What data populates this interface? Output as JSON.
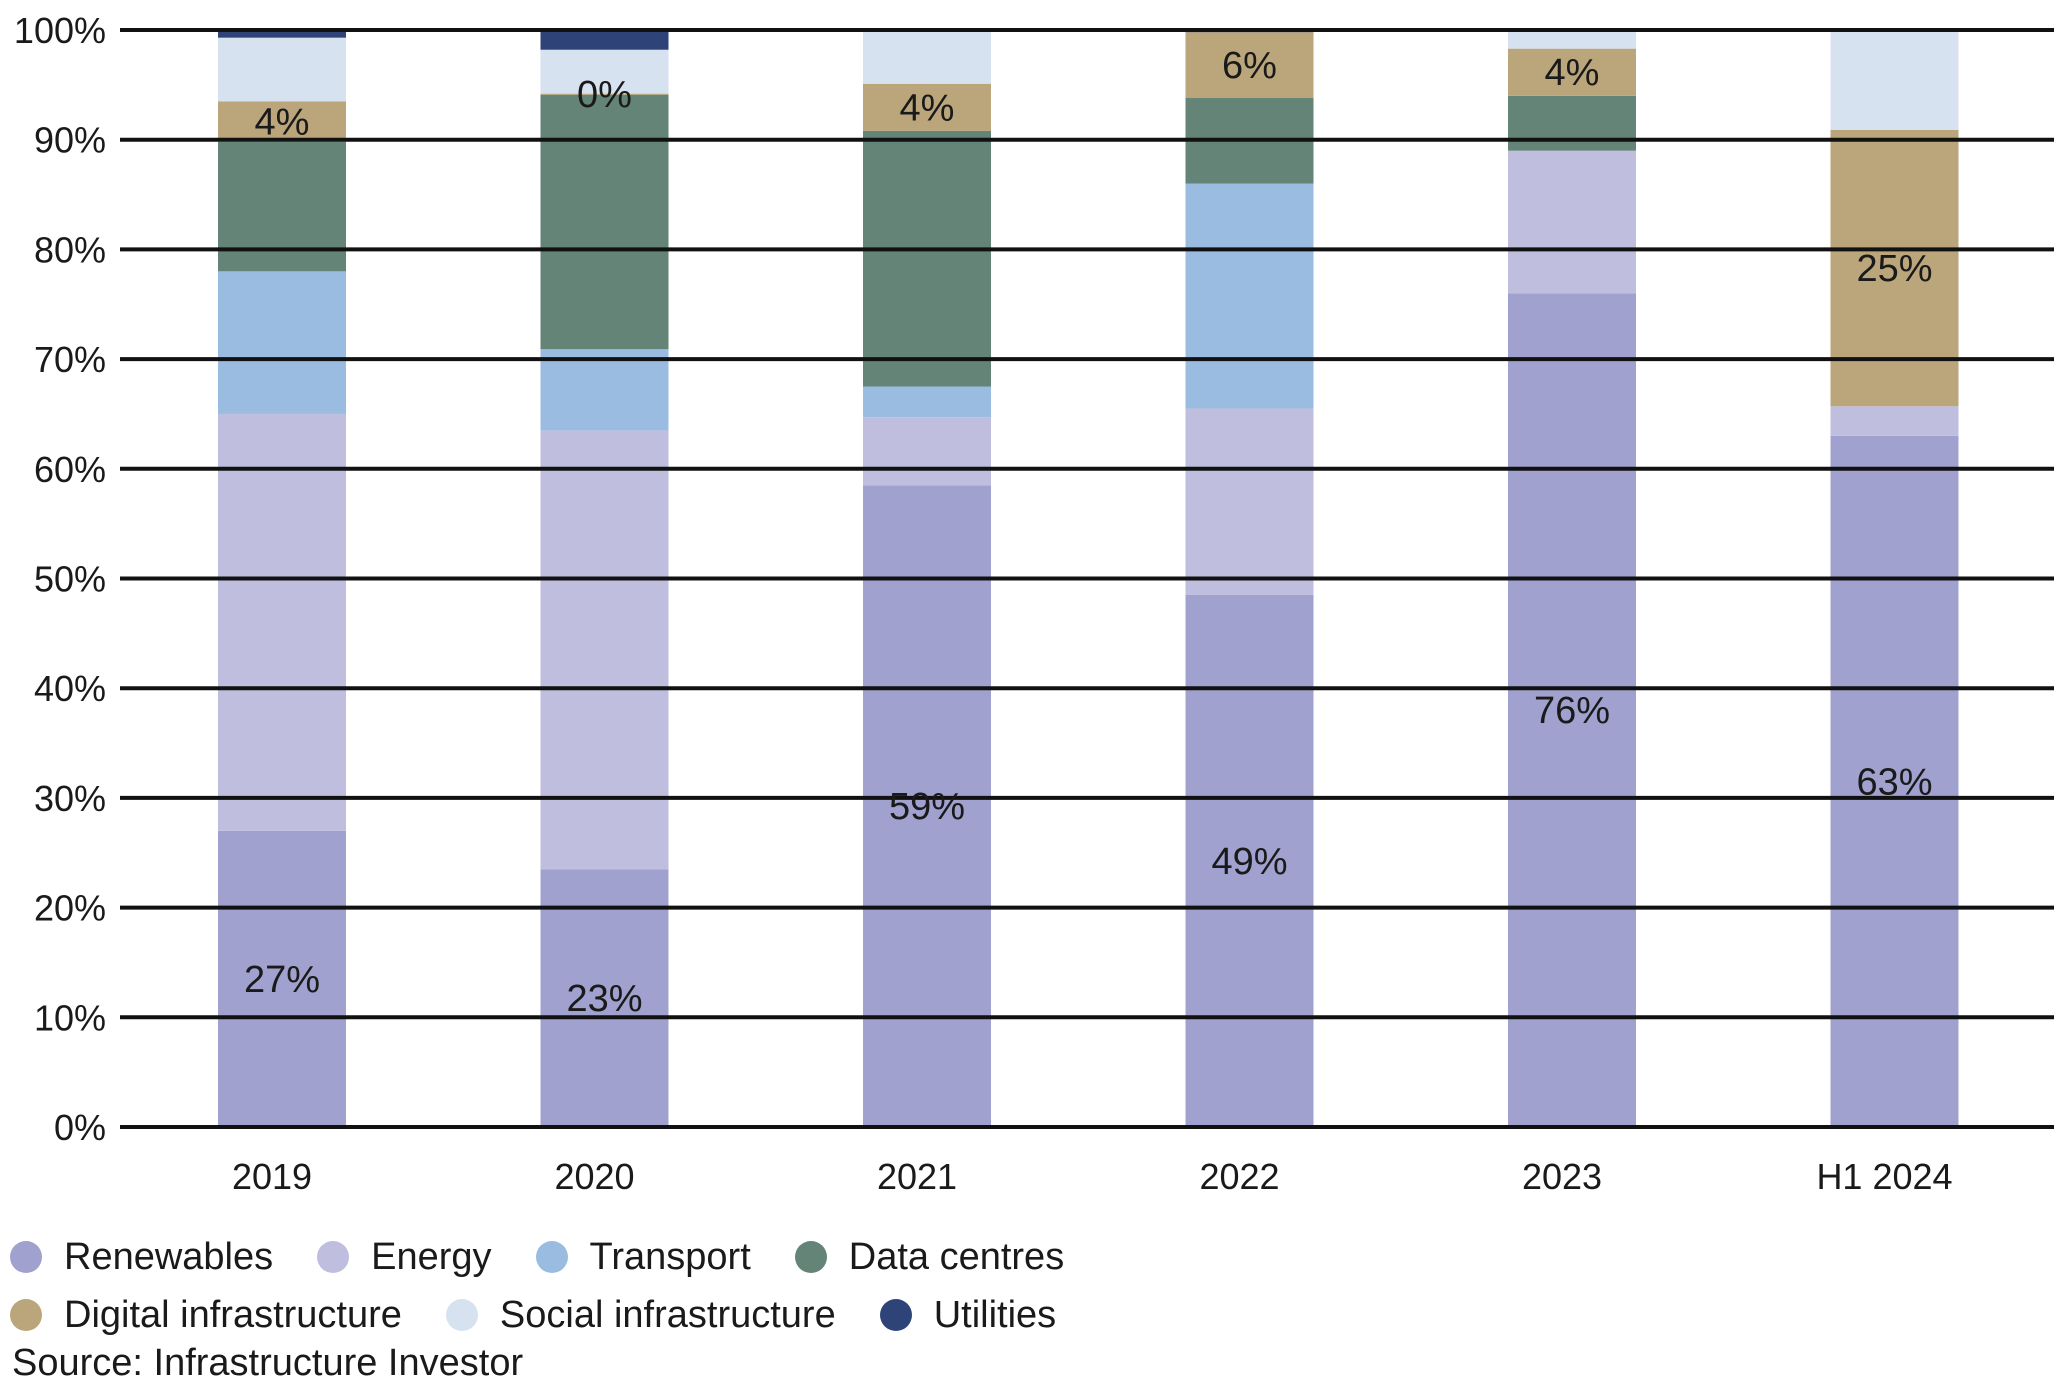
{
  "chart_data": {
    "type": "bar",
    "stacked": true,
    "categories": [
      "2019",
      "2020",
      "2021",
      "2022",
      "2023",
      "H1 2024"
    ],
    "ylim": [
      0,
      100
    ],
    "yticks": [
      "0%",
      "10%",
      "20%",
      "30%",
      "40%",
      "50%",
      "60%",
      "70%",
      "80%",
      "90%",
      "100%"
    ],
    "grid": true,
    "legend_position": "bottom-left",
    "series": [
      {
        "name": "Renewables",
        "color": "#a0a1ce",
        "values": [
          27,
          23.5,
          58.5,
          48.5,
          76,
          63
        ],
        "labels": [
          "27%",
          "23%",
          "59%",
          "49%",
          "76%",
          "63%"
        ]
      },
      {
        "name": "Energy",
        "color": "#bfbedf",
        "values": [
          38,
          40,
          6.2,
          17,
          13,
          2.7
        ],
        "labels": [
          "",
          "",
          "",
          "",
          "",
          ""
        ]
      },
      {
        "name": "Transport",
        "color": "#99bce0",
        "values": [
          13,
          7.4,
          2.8,
          20.5,
          0,
          0
        ],
        "labels": [
          "",
          "",
          "",
          "",
          "",
          ""
        ]
      },
      {
        "name": "Data centres",
        "color": "#638476",
        "values": [
          11.8,
          23.2,
          23.3,
          7.8,
          5,
          0
        ],
        "labels": [
          "",
          "",
          "",
          "",
          "",
          ""
        ]
      },
      {
        "name": "Digital infrastructure",
        "color": "#bba67c",
        "values": [
          3.7,
          0.1,
          4.3,
          6,
          4.3,
          25.2
        ],
        "labels": [
          "4%",
          "0%",
          "4%",
          "6%",
          "4%",
          "25%"
        ]
      },
      {
        "name": "Social infrastructure",
        "color": "#d7e2f1",
        "values": [
          5.8,
          4,
          4.9,
          0,
          1.7,
          9.1
        ],
        "labels": [
          "",
          "",
          "",
          "",
          "",
          ""
        ]
      },
      {
        "name": "Utilities",
        "color": "#2e4479",
        "values": [
          0.7,
          1.8,
          0,
          0.2,
          0,
          0
        ],
        "labels": [
          "",
          "",
          "",
          "",
          "",
          ""
        ]
      }
    ]
  },
  "legend_rows": [
    [
      {
        "name": "Renewables",
        "color": "#a0a1ce"
      },
      {
        "name": "Energy",
        "color": "#bfbedf"
      },
      {
        "name": "Transport",
        "color": "#99bce0"
      },
      {
        "name": "Data centres",
        "color": "#638476"
      }
    ],
    [
      {
        "name": "Digital infrastructure",
        "color": "#bba67c"
      },
      {
        "name": "Social infrastructure",
        "color": "#d7e2f1"
      },
      {
        "name": "Utilities",
        "color": "#2e4479"
      }
    ]
  ],
  "source": "Source: Infrastructure Investor"
}
